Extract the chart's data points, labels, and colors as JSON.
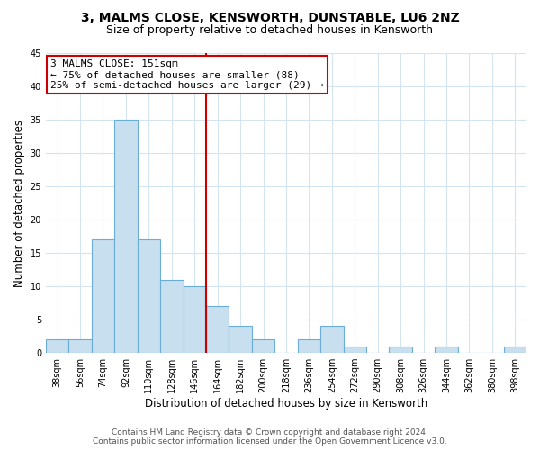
{
  "title": "3, MALMS CLOSE, KENSWORTH, DUNSTABLE, LU6 2NZ",
  "subtitle": "Size of property relative to detached houses in Kensworth",
  "xlabel": "Distribution of detached houses by size in Kensworth",
  "ylabel": "Number of detached properties",
  "bin_labels": [
    "38sqm",
    "56sqm",
    "74sqm",
    "92sqm",
    "110sqm",
    "128sqm",
    "146sqm",
    "164sqm",
    "182sqm",
    "200sqm",
    "218sqm",
    "236sqm",
    "254sqm",
    "272sqm",
    "290sqm",
    "308sqm",
    "326sqm",
    "344sqm",
    "362sqm",
    "380sqm",
    "398sqm"
  ],
  "bar_heights": [
    2,
    2,
    17,
    35,
    17,
    11,
    10,
    7,
    4,
    2,
    0,
    2,
    4,
    1,
    0,
    1,
    0,
    1,
    0,
    0,
    1
  ],
  "bar_color": "#c8dff0",
  "bar_edge_color": "#6aaed6",
  "vline_index": 6.5,
  "vline_color": "#cc0000",
  "annotation_title": "3 MALMS CLOSE: 151sqm",
  "annotation_line1": "← 75% of detached houses are smaller (88)",
  "annotation_line2": "25% of semi-detached houses are larger (29) →",
  "annotation_box_color": "#ffffff",
  "annotation_box_edge": "#cc0000",
  "ylim": [
    0,
    45
  ],
  "yticks": [
    0,
    5,
    10,
    15,
    20,
    25,
    30,
    35,
    40,
    45
  ],
  "footer_line1": "Contains HM Land Registry data © Crown copyright and database right 2024.",
  "footer_line2": "Contains public sector information licensed under the Open Government Licence v3.0.",
  "background_color": "#ffffff",
  "grid_color": "#d4e4f0",
  "title_fontsize": 10,
  "subtitle_fontsize": 9,
  "axis_label_fontsize": 8.5,
  "tick_fontsize": 7,
  "annotation_fontsize": 8,
  "footer_fontsize": 6.5
}
